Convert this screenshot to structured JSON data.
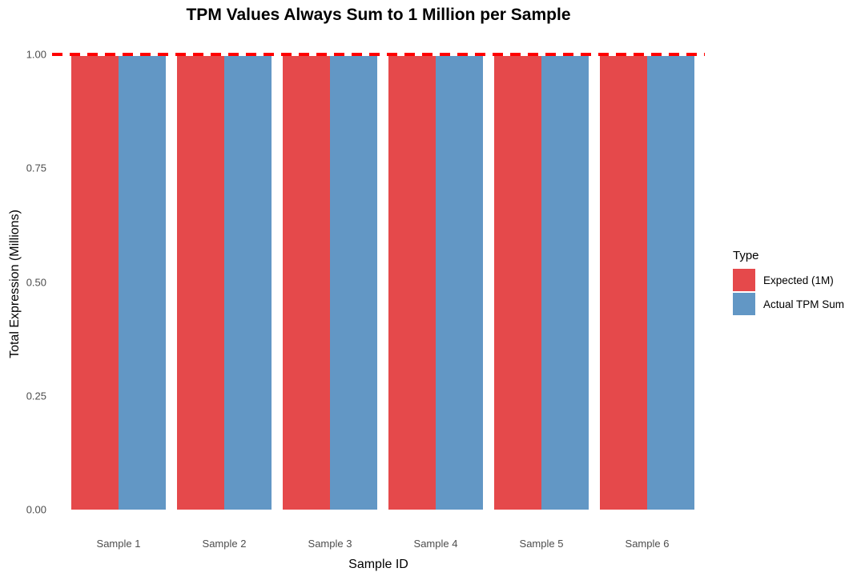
{
  "title": "TPM Values Always Sum to 1 Million per Sample",
  "legend": {
    "title": "Type",
    "items": [
      {
        "label": "Expected (1M)",
        "color": "#E5494B"
      },
      {
        "label": "Actual TPM Sum",
        "color": "#6297C5"
      }
    ]
  },
  "chart_data": {
    "type": "bar",
    "title": "TPM Values Always Sum to 1 Million per Sample",
    "xlabel": "Sample ID",
    "ylabel": "Total Expression (Millions)",
    "categories": [
      "Sample 1",
      "Sample 2",
      "Sample 3",
      "Sample 4",
      "Sample 5",
      "Sample 6"
    ],
    "series": [
      {
        "name": "Expected (1M)",
        "color": "#E5494B",
        "values": [
          1.0,
          1.0,
          1.0,
          1.0,
          1.0,
          1.0
        ]
      },
      {
        "name": "Actual TPM Sum",
        "color": "#6297C5",
        "values": [
          1.0,
          1.0,
          1.0,
          1.0,
          1.0,
          1.0
        ]
      }
    ],
    "bar_layout": "dodged",
    "ylim": [
      0,
      1.0
    ],
    "yticks": [
      0.0,
      0.25,
      0.5,
      0.75,
      1.0
    ],
    "ytick_labels": [
      "0.00",
      "0.25",
      "0.50",
      "0.75",
      "1.00"
    ],
    "reference_line": {
      "y": 1.0,
      "color": "#FF0000",
      "style": "dashed"
    },
    "grid": false,
    "legend_position": "right",
    "background": "#FFFFFF"
  }
}
